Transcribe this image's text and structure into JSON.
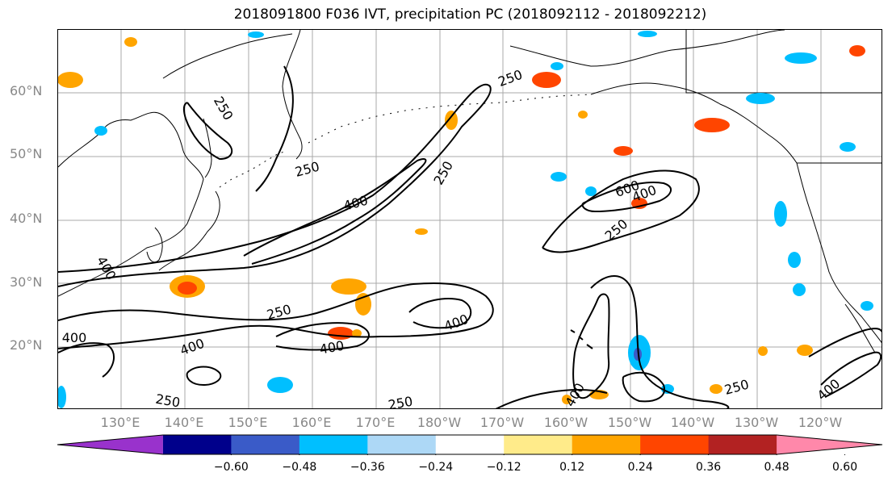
{
  "title": "2018091800 F036 IVT, precipitation PC (2018092112 - 2018092212)",
  "latitude_labels": [
    "60°N",
    "50°N",
    "40°N",
    "30°N",
    "20°N"
  ],
  "longitude_labels": [
    "130°E",
    "140°E",
    "150°E",
    "160°E",
    "170°E",
    "180°W",
    "170°W",
    "160°W",
    "150°W",
    "140°W",
    "130°W",
    "120°W"
  ],
  "contour_labels": [
    "250",
    "250",
    "250",
    "250",
    "250",
    "250",
    "250",
    "250",
    "250",
    "400",
    "400",
    "400",
    "400",
    "400",
    "400",
    "400",
    "400",
    "400",
    "600"
  ],
  "colorbar": {
    "tick_labels": [
      "−0.60",
      "−0.48",
      "−0.36",
      "−0.24",
      "−0.12",
      "0.12",
      "0.24",
      "0.36",
      "0.48",
      "0.60"
    ],
    "colors": [
      "#9932cc",
      "#00008b",
      "#3a5bc8",
      "#00bfff",
      "#add8f6",
      "#ffffff",
      "#ffeb8a",
      "#ffa500",
      "#ff4500",
      "#b22222",
      "#ff88aa"
    ]
  },
  "colors": {
    "contour": "#000000",
    "grid": "#a9a9a9",
    "coast": "#000000",
    "axis_label": "#888888"
  }
}
